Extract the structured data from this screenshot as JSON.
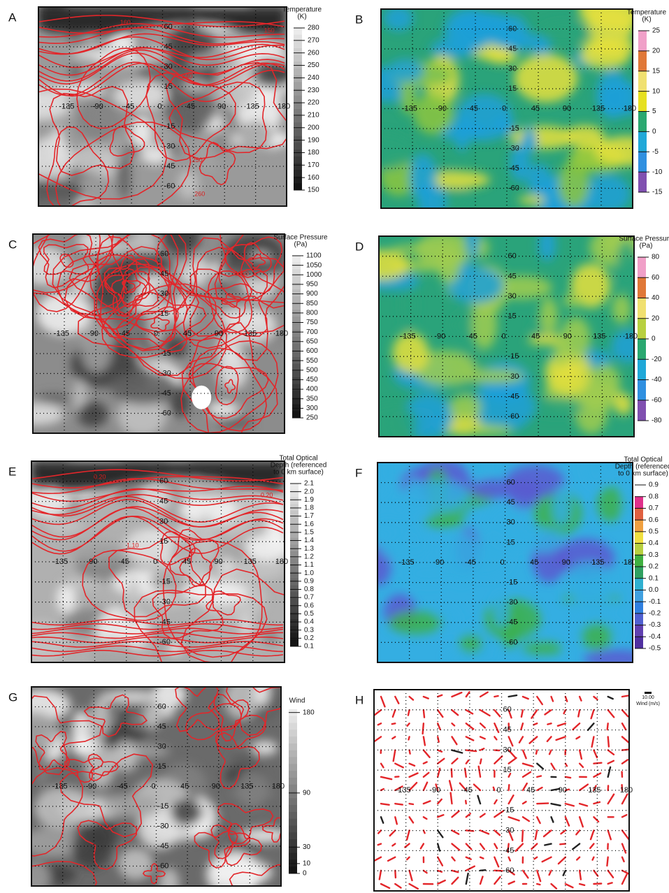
{
  "panels": [
    {
      "label": "A",
      "legend_title": [
        "Temperature",
        "(K)"
      ],
      "legend_ticks": [
        "280",
        "270",
        "260",
        "250",
        "240",
        "230",
        "220",
        "210",
        "200",
        "190",
        "180",
        "170",
        "160",
        "150"
      ],
      "contour_labels": [
        "160",
        "150",
        "240",
        "250",
        "260"
      ]
    },
    {
      "label": "B",
      "legend_title": [
        "Temperature",
        "(K)"
      ],
      "legend_ticks": [
        "25",
        "20",
        "15",
        "10",
        "5",
        "0",
        "-5",
        "-10",
        "-15"
      ]
    },
    {
      "label": "C",
      "legend_title": [
        "Surface Pressure",
        "(Pa)"
      ],
      "legend_ticks": [
        "1100",
        "1050",
        "1000",
        "950",
        "900",
        "850",
        "800",
        "750",
        "700",
        "650",
        "600",
        "550",
        "500",
        "450",
        "400",
        "350",
        "300",
        "250"
      ],
      "contour_labels": [
        "1050"
      ]
    },
    {
      "label": "D",
      "legend_title": [
        "Surface Pressure",
        "(Pa)"
      ],
      "legend_ticks": [
        "80",
        "60",
        "40",
        "20",
        "0",
        "-20",
        "-40",
        "-60",
        "-80"
      ]
    },
    {
      "label": "E",
      "legend_title": [
        "Total Optical",
        "Depth (referenced",
        "to 0 km surface)"
      ],
      "legend_ticks": [
        "2.1",
        "2.0",
        "1.9",
        "1.8",
        "1.7",
        "1.6",
        "1.5",
        "1.4",
        "1.3",
        "1.2",
        "1.1",
        "1.0",
        "0.9",
        "0.8",
        "0.7",
        "0.6",
        "0.5",
        "0.4",
        "0.3",
        "0.2",
        "0.1"
      ],
      "contour_labels": [
        "0.20",
        "0.20",
        "1.10"
      ]
    },
    {
      "label": "F",
      "legend_title": [
        "Total Optical",
        "Depth (referenced",
        "to 0 km surface)"
      ],
      "legend_ticks": [
        "0.9",
        "0.8",
        "0.7",
        "0.6",
        "0.5",
        "0.4",
        "0.3",
        "0.2",
        "0.1",
        "0.0",
        "-0.1",
        "-0.2",
        "-0.3",
        "-0.4",
        "-0.5"
      ]
    },
    {
      "label": "G",
      "legend_title": [
        "Wind"
      ],
      "legend_ticks": [
        "180",
        "90",
        "30",
        "10",
        "0"
      ]
    },
    {
      "label": "H",
      "legend_title": [
        "Wind (m/s)"
      ],
      "legend_ticks": [
        "10.00"
      ]
    }
  ],
  "map_axes": {
    "lon": [
      "-135",
      "-90",
      "-45",
      "0",
      "45",
      "90",
      "135",
      "180"
    ],
    "lat": [
      "60",
      "45",
      "30",
      "15",
      "-15",
      "-30",
      "-45",
      "-60"
    ]
  }
}
